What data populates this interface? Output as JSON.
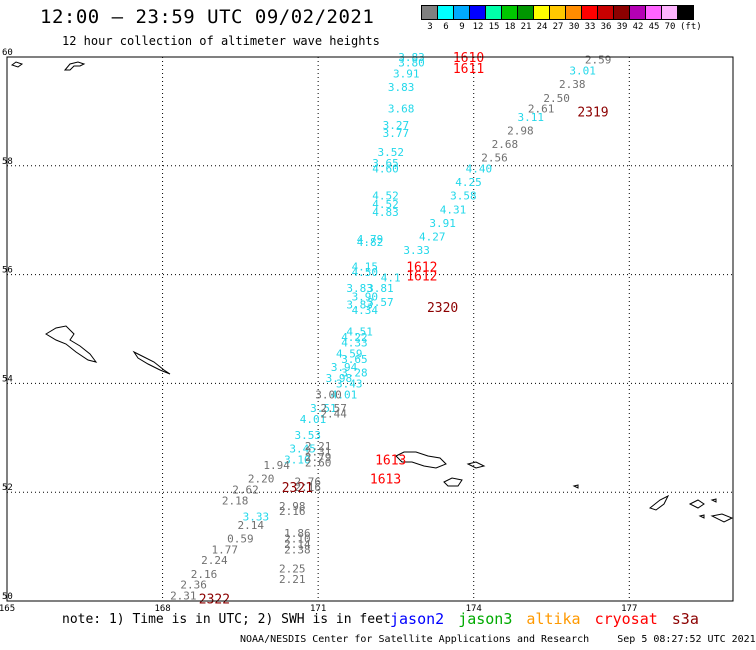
{
  "header": {
    "title": "12:00 – 23:59 UTC 09/02/2021",
    "subtitle": "12 hour collection of altimeter wave heights"
  },
  "colorbar": {
    "colors": [
      "#808080",
      "#00ffff",
      "#00aaff",
      "#0000ff",
      "#00ffaa",
      "#00c800",
      "#009600",
      "#ffff00",
      "#ffc800",
      "#ff8c00",
      "#ff0000",
      "#c80000",
      "#8c0000",
      "#b400b4",
      "#ff64ff",
      "#ffb4ff",
      "#000000"
    ],
    "labels": [
      "3",
      "6",
      "9",
      "12",
      "15",
      "18",
      "21",
      "24",
      "27",
      "30",
      "33",
      "36",
      "39",
      "42",
      "45",
      "70"
    ],
    "unit": "(ft)"
  },
  "map": {
    "lat_labels": [
      "60",
      "58",
      "56",
      "54",
      "52",
      "50"
    ],
    "lon_labels": [
      "165",
      "168",
      "171",
      "174",
      "177"
    ],
    "projection_note": "lon 165E–179E, lat 50N–60N"
  },
  "observations": [
    {
      "v": "3.83",
      "c": "cyan",
      "lon": 172.8,
      "lat": 60.0
    },
    {
      "v": "3.80",
      "c": "cyan",
      "lon": 172.8,
      "lat": 59.9
    },
    {
      "v": "3.91",
      "c": "cyan",
      "lon": 172.7,
      "lat": 59.7
    },
    {
      "v": "3.83",
      "c": "cyan",
      "lon": 172.6,
      "lat": 59.45
    },
    {
      "v": "3.68",
      "c": "cyan",
      "lon": 172.6,
      "lat": 59.05
    },
    {
      "v": "3.27",
      "c": "cyan",
      "lon": 172.5,
      "lat": 58.75
    },
    {
      "v": "3.77",
      "c": "cyan",
      "lon": 172.5,
      "lat": 58.6
    },
    {
      "v": "3.52",
      "c": "cyan",
      "lon": 172.4,
      "lat": 58.25
    },
    {
      "v": "3.65",
      "c": "cyan",
      "lon": 172.3,
      "lat": 58.05
    },
    {
      "v": "4.60",
      "c": "cyan",
      "lon": 172.3,
      "lat": 57.95
    },
    {
      "v": "4.52",
      "c": "cyan",
      "lon": 172.3,
      "lat": 57.45
    },
    {
      "v": "4.52",
      "c": "cyan",
      "lon": 172.3,
      "lat": 57.3
    },
    {
      "v": "4.83",
      "c": "cyan",
      "lon": 172.3,
      "lat": 57.15
    },
    {
      "v": "4.79",
      "c": "cyan",
      "lon": 172.0,
      "lat": 56.65
    },
    {
      "v": "4.82",
      "c": "cyan",
      "lon": 172.0,
      "lat": 56.6
    },
    {
      "v": "4.15",
      "c": "cyan",
      "lon": 171.9,
      "lat": 56.15
    },
    {
      "v": "4.50",
      "c": "cyan",
      "lon": 171.9,
      "lat": 56.05
    },
    {
      "v": "4.1",
      "c": "cyan",
      "lon": 172.4,
      "lat": 55.95
    },
    {
      "v": "3.83",
      "c": "cyan",
      "lon": 171.8,
      "lat": 55.75
    },
    {
      "v": "3.81",
      "c": "cyan",
      "lon": 172.2,
      "lat": 55.75
    },
    {
      "v": "3.90",
      "c": "cyan",
      "lon": 171.9,
      "lat": 55.6
    },
    {
      "v": "3.57",
      "c": "cyan",
      "lon": 172.2,
      "lat": 55.5
    },
    {
      "v": "3.83",
      "c": "cyan",
      "lon": 171.8,
      "lat": 55.45
    },
    {
      "v": "4.34",
      "c": "cyan",
      "lon": 171.9,
      "lat": 55.35
    },
    {
      "v": "4.51",
      "c": "cyan",
      "lon": 171.8,
      "lat": 54.95
    },
    {
      "v": "4.22",
      "c": "cyan",
      "lon": 171.7,
      "lat": 54.85
    },
    {
      "v": "4.33",
      "c": "cyan",
      "lon": 171.7,
      "lat": 54.75
    },
    {
      "v": "4.59",
      "c": "cyan",
      "lon": 171.6,
      "lat": 54.55
    },
    {
      "v": "3.65",
      "c": "cyan",
      "lon": 171.7,
      "lat": 54.45
    },
    {
      "v": "3.94",
      "c": "cyan",
      "lon": 171.5,
      "lat": 54.3
    },
    {
      "v": "3.28",
      "c": "cyan",
      "lon": 171.7,
      "lat": 54.2
    },
    {
      "v": "3.98",
      "c": "cyan",
      "lon": 171.4,
      "lat": 54.1
    },
    {
      "v": "3.43",
      "c": "cyan",
      "lon": 171.6,
      "lat": 54.0
    },
    {
      "v": "4.01",
      "c": "cyan",
      "lon": 171.5,
      "lat": 53.8
    },
    {
      "v": "3.51",
      "c": "cyan",
      "lon": 171.1,
      "lat": 53.55
    },
    {
      "v": "4.01",
      "c": "cyan",
      "lon": 170.9,
      "lat": 53.35
    },
    {
      "v": "3.53",
      "c": "cyan",
      "lon": 170.8,
      "lat": 53.05
    },
    {
      "v": "3.45",
      "c": "cyan",
      "lon": 170.7,
      "lat": 52.8
    },
    {
      "v": "3.10",
      "c": "cyan",
      "lon": 170.6,
      "lat": 52.6
    },
    {
      "v": "3.33",
      "c": "cyan",
      "lon": 169.8,
      "lat": 51.55
    },
    {
      "v": "2.59",
      "c": "gray",
      "lon": 176.4,
      "lat": 59.95
    },
    {
      "v": "3.01",
      "c": "cyan",
      "lon": 176.1,
      "lat": 59.75
    },
    {
      "v": "2.38",
      "c": "gray",
      "lon": 175.9,
      "lat": 59.5
    },
    {
      "v": "2.50",
      "c": "gray",
      "lon": 175.6,
      "lat": 59.25
    },
    {
      "v": "2.61",
      "c": "gray",
      "lon": 175.3,
      "lat": 59.05
    },
    {
      "v": "3.11",
      "c": "cyan",
      "lon": 175.1,
      "lat": 58.9
    },
    {
      "v": "2.98",
      "c": "gray",
      "lon": 174.9,
      "lat": 58.65
    },
    {
      "v": "2.68",
      "c": "gray",
      "lon": 174.6,
      "lat": 58.4
    },
    {
      "v": "2.56",
      "c": "gray",
      "lon": 174.4,
      "lat": 58.15
    },
    {
      "v": "4.40",
      "c": "cyan",
      "lon": 174.1,
      "lat": 57.95
    },
    {
      "v": "4.25",
      "c": "cyan",
      "lon": 173.9,
      "lat": 57.7
    },
    {
      "v": "3.58",
      "c": "cyan",
      "lon": 173.8,
      "lat": 57.45
    },
    {
      "v": "4.31",
      "c": "cyan",
      "lon": 173.6,
      "lat": 57.2
    },
    {
      "v": "3.91",
      "c": "cyan",
      "lon": 173.4,
      "lat": 56.95
    },
    {
      "v": "4.27",
      "c": "cyan",
      "lon": 173.2,
      "lat": 56.7
    },
    {
      "v": "3.33",
      "c": "cyan",
      "lon": 172.9,
      "lat": 56.45
    },
    {
      "v": "2.21",
      "c": "gray",
      "lon": 171.0,
      "lat": 52.85
    },
    {
      "v": "2.31",
      "c": "gray",
      "lon": 171.0,
      "lat": 52.75
    },
    {
      "v": "2.79",
      "c": "gray",
      "lon": 171.0,
      "lat": 52.65
    },
    {
      "v": "2.60",
      "c": "gray",
      "lon": 171.0,
      "lat": 52.55
    },
    {
      "v": "1.94",
      "c": "gray",
      "lon": 170.2,
      "lat": 52.5
    },
    {
      "v": "2.20",
      "c": "gray",
      "lon": 169.9,
      "lat": 52.25
    },
    {
      "v": "2.76",
      "c": "gray",
      "lon": 170.8,
      "lat": 52.2
    },
    {
      "v": "2.16",
      "c": "gray",
      "lon": 170.8,
      "lat": 52.1
    },
    {
      "v": "2.62",
      "c": "gray",
      "lon": 169.6,
      "lat": 52.05
    },
    {
      "v": "2.18",
      "c": "gray",
      "lon": 169.4,
      "lat": 51.85
    },
    {
      "v": "2.98",
      "c": "gray",
      "lon": 170.5,
      "lat": 51.75
    },
    {
      "v": "2.16",
      "c": "gray",
      "lon": 170.5,
      "lat": 51.65
    },
    {
      "v": "2.14",
      "c": "gray",
      "lon": 169.7,
      "lat": 51.4
    },
    {
      "v": "0.59",
      "c": "gray",
      "lon": 169.5,
      "lat": 51.15
    },
    {
      "v": "1.77",
      "c": "gray",
      "lon": 169.2,
      "lat": 50.95
    },
    {
      "v": "2.24",
      "c": "gray",
      "lon": 169.0,
      "lat": 50.75
    },
    {
      "v": "2.16",
      "c": "gray",
      "lon": 168.8,
      "lat": 50.5
    },
    {
      "v": "2.36",
      "c": "gray",
      "lon": 168.6,
      "lat": 50.3
    },
    {
      "v": "2.31",
      "c": "gray",
      "lon": 168.4,
      "lat": 50.1
    },
    {
      "v": "1.86",
      "c": "gray",
      "lon": 170.6,
      "lat": 51.25
    },
    {
      "v": "2.10",
      "c": "gray",
      "lon": 170.6,
      "lat": 51.15
    },
    {
      "v": "2.14",
      "c": "gray",
      "lon": 170.6,
      "lat": 51.05
    },
    {
      "v": "2.38",
      "c": "gray",
      "lon": 170.6,
      "lat": 50.95
    },
    {
      "v": "2.25",
      "c": "gray",
      "lon": 170.5,
      "lat": 50.6
    },
    {
      "v": "2.21",
      "c": "gray",
      "lon": 170.5,
      "lat": 50.4
    },
    {
      "v": "2.57",
      "c": "gray",
      "lon": 171.3,
      "lat": 53.55
    },
    {
      "v": "2.44",
      "c": "gray",
      "lon": 171.3,
      "lat": 53.45
    },
    {
      "v": "3.00",
      "c": "gray",
      "lon": 171.2,
      "lat": 53.8
    }
  ],
  "pass_labels": [
    {
      "v": "1610",
      "c": "#ff0000",
      "lon": 173.9,
      "lat": 60.0
    },
    {
      "v": "1611",
      "c": "#ff0000",
      "lon": 173.9,
      "lat": 59.8
    },
    {
      "v": "2319",
      "c": "#8c0000",
      "lon": 176.3,
      "lat": 59.0
    },
    {
      "v": "1612",
      "c": "#ff0000",
      "lon": 173.0,
      "lat": 56.15
    },
    {
      "v": "1612",
      "c": "#ff0000",
      "lon": 173.0,
      "lat": 55.98
    },
    {
      "v": "2320",
      "c": "#8c0000",
      "lon": 173.4,
      "lat": 55.4
    },
    {
      "v": "1613",
      "c": "#ff0000",
      "lon": 172.4,
      "lat": 52.6
    },
    {
      "v": "1613",
      "c": "#ff0000",
      "lon": 172.3,
      "lat": 52.25
    },
    {
      "v": "2321",
      "c": "#8c0000",
      "lon": 170.6,
      "lat": 52.1
    },
    {
      "v": "2322",
      "c": "#8c0000",
      "lon": 169.0,
      "lat": 50.05
    }
  ],
  "note": "note: 1) Time is in UTC; 2) SWH is in feet",
  "legend": [
    {
      "label": "jason2",
      "color": "#0000ff"
    },
    {
      "label": "jason3",
      "color": "#00aa00"
    },
    {
      "label": "altika",
      "color": "#ff9900"
    },
    {
      "label": "cryosat",
      "color": "#ff0000"
    },
    {
      "label": "s3a",
      "color": "#8c0000"
    }
  ],
  "footer": {
    "center": "NOAA/NESDIS Center for Satellite Applications and Research",
    "generated": "Sep  5 08:27:52 UTC 2021"
  }
}
